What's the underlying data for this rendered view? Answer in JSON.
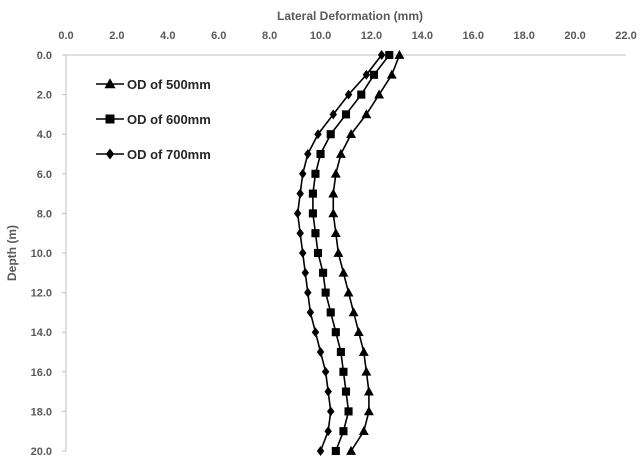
{
  "chart_data": {
    "type": "line",
    "title": "",
    "xlabel": "Lateral Deformation (mm)",
    "ylabel": "Depth (m)",
    "xlim": [
      0,
      22
    ],
    "ylim": [
      0,
      20
    ],
    "y_inverted": true,
    "x_axis_position": "top",
    "x_ticks": [
      "0.0",
      "2.0",
      "4.0",
      "6.0",
      "8.0",
      "10.0",
      "12.0",
      "14.0",
      "16.0",
      "18.0",
      "20.0",
      "22.0"
    ],
    "y_ticks": [
      "0.0",
      "2.0",
      "4.0",
      "6.0",
      "8.0",
      "10.0",
      "12.0",
      "14.0",
      "16.0",
      "18.0",
      "20.0"
    ],
    "grid": false,
    "legend_position": "top-left",
    "series": [
      {
        "name": "OD of 500mm",
        "marker": "triangle",
        "color": "#000000",
        "points": [
          {
            "x": 13.1,
            "y": 0
          },
          {
            "x": 12.8,
            "y": 1
          },
          {
            "x": 12.3,
            "y": 2
          },
          {
            "x": 11.8,
            "y": 3
          },
          {
            "x": 11.2,
            "y": 4
          },
          {
            "x": 10.8,
            "y": 5
          },
          {
            "x": 10.6,
            "y": 6
          },
          {
            "x": 10.5,
            "y": 7
          },
          {
            "x": 10.5,
            "y": 8
          },
          {
            "x": 10.6,
            "y": 9
          },
          {
            "x": 10.7,
            "y": 10
          },
          {
            "x": 10.9,
            "y": 11
          },
          {
            "x": 11.1,
            "y": 12
          },
          {
            "x": 11.3,
            "y": 13
          },
          {
            "x": 11.5,
            "y": 14
          },
          {
            "x": 11.7,
            "y": 15
          },
          {
            "x": 11.8,
            "y": 16
          },
          {
            "x": 11.9,
            "y": 17
          },
          {
            "x": 11.9,
            "y": 18
          },
          {
            "x": 11.7,
            "y": 19
          },
          {
            "x": 11.2,
            "y": 20
          }
        ]
      },
      {
        "name": "OD of 600mm",
        "marker": "square",
        "color": "#000000",
        "points": [
          {
            "x": 12.7,
            "y": 0
          },
          {
            "x": 12.1,
            "y": 1
          },
          {
            "x": 11.6,
            "y": 2
          },
          {
            "x": 11.0,
            "y": 3
          },
          {
            "x": 10.4,
            "y": 4
          },
          {
            "x": 10.0,
            "y": 5
          },
          {
            "x": 9.8,
            "y": 6
          },
          {
            "x": 9.7,
            "y": 7
          },
          {
            "x": 9.7,
            "y": 8
          },
          {
            "x": 9.8,
            "y": 9
          },
          {
            "x": 9.9,
            "y": 10
          },
          {
            "x": 10.1,
            "y": 11
          },
          {
            "x": 10.2,
            "y": 12
          },
          {
            "x": 10.4,
            "y": 13
          },
          {
            "x": 10.6,
            "y": 14
          },
          {
            "x": 10.8,
            "y": 15
          },
          {
            "x": 10.9,
            "y": 16
          },
          {
            "x": 11.0,
            "y": 17
          },
          {
            "x": 11.1,
            "y": 18
          },
          {
            "x": 10.9,
            "y": 19
          },
          {
            "x": 10.6,
            "y": 20
          }
        ]
      },
      {
        "name": "OD of 700mm",
        "marker": "diamond",
        "color": "#000000",
        "points": [
          {
            "x": 12.4,
            "y": 0
          },
          {
            "x": 11.8,
            "y": 1
          },
          {
            "x": 11.1,
            "y": 2
          },
          {
            "x": 10.5,
            "y": 3
          },
          {
            "x": 9.9,
            "y": 4
          },
          {
            "x": 9.5,
            "y": 5
          },
          {
            "x": 9.3,
            "y": 6
          },
          {
            "x": 9.2,
            "y": 7
          },
          {
            "x": 9.1,
            "y": 8
          },
          {
            "x": 9.2,
            "y": 9
          },
          {
            "x": 9.3,
            "y": 10
          },
          {
            "x": 9.4,
            "y": 11
          },
          {
            "x": 9.5,
            "y": 12
          },
          {
            "x": 9.6,
            "y": 13
          },
          {
            "x": 9.8,
            "y": 14
          },
          {
            "x": 10.0,
            "y": 15
          },
          {
            "x": 10.2,
            "y": 16
          },
          {
            "x": 10.3,
            "y": 17
          },
          {
            "x": 10.4,
            "y": 18
          },
          {
            "x": 10.3,
            "y": 19
          },
          {
            "x": 10.0,
            "y": 20
          }
        ]
      }
    ]
  }
}
